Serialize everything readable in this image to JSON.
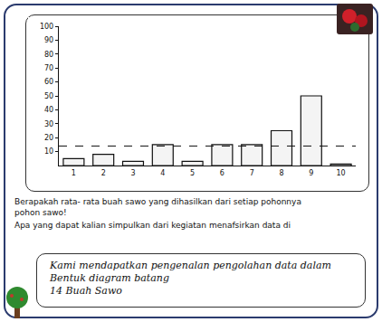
{
  "chart_data": {
    "type": "bar",
    "categories": [
      "1",
      "2",
      "3",
      "4",
      "5",
      "6",
      "7",
      "8",
      "9",
      "10"
    ],
    "values": [
      5,
      8,
      3,
      15,
      3,
      15,
      15,
      25,
      50,
      1
    ],
    "color": "#f4f4f4",
    "ylim": [
      0,
      100
    ],
    "yticks": [
      10,
      20,
      30,
      40,
      50,
      60,
      70,
      80,
      90,
      100
    ],
    "reference_line": 14,
    "grid": false
  },
  "questions": [
    "Berapakah rata- rata buah sawo yang dihasilkan dari setiap pohonnya",
    "pohon sawo!",
    "Apa yang dapat kalian simpulkan dari kegiatan menafsirkan data di"
  ],
  "answer": {
    "lines": [
      "Kami mendapatkan pengenalan pengolahan data dalam",
      "Bentuk diagram batang"
    ],
    "result": "14 Buah Sawo"
  }
}
